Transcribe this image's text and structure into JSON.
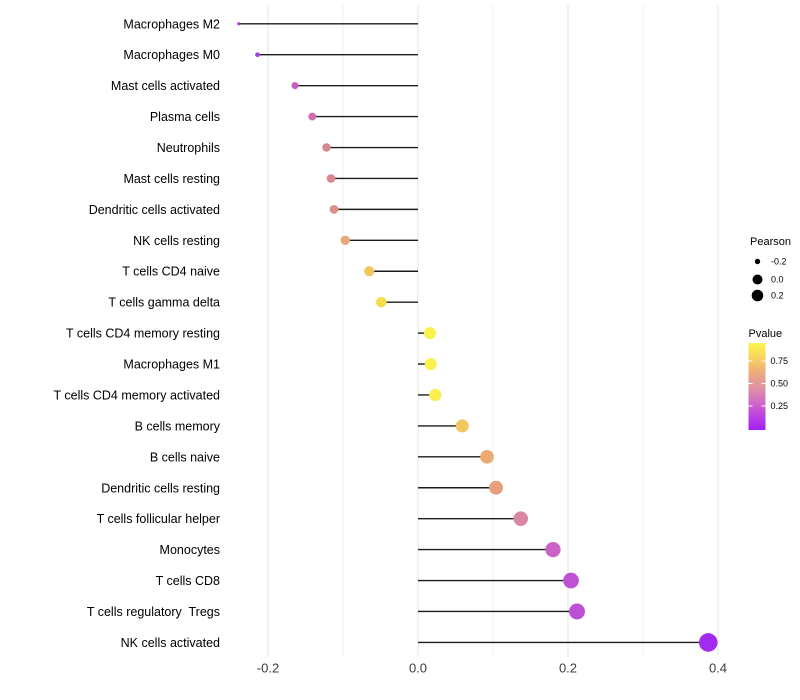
{
  "chart_data": {
    "type": "lollipop",
    "orientation": "horizontal",
    "title": "",
    "xlabel": "",
    "ylabel": "",
    "x_axis": {
      "tick_labels": [
        "-0.2",
        "0.0",
        "0.2",
        "0.4"
      ],
      "tick_values": [
        -0.2,
        0.0,
        0.2,
        0.4
      ],
      "minor_gridline_values": [
        -0.1,
        0.1,
        0.3
      ],
      "range": [
        -0.253,
        0.417
      ]
    },
    "encoding": {
      "x": "Pearson correlation",
      "point_size": "Pearson",
      "point_color": "Pvalue"
    },
    "points": [
      {
        "label": "Macrophages M2",
        "pearson": -0.239,
        "pvalue_est": 0.02,
        "color": "#A233E0"
      },
      {
        "label": "Macrophages M0",
        "pearson": -0.214,
        "pvalue_est": 0.06,
        "color": "#AB3FD9"
      },
      {
        "label": "Mast cells activated",
        "pearson": -0.164,
        "pvalue_est": 0.21,
        "color": "#C75DC0"
      },
      {
        "label": "Plasma cells",
        "pearson": -0.141,
        "pvalue_est": 0.28,
        "color": "#CE6CB4"
      },
      {
        "label": "Neutrophils",
        "pearson": -0.122,
        "pvalue_est": 0.38,
        "color": "#D8868F"
      },
      {
        "label": "Mast cells resting",
        "pearson": -0.116,
        "pvalue_est": 0.39,
        "color": "#D9888F"
      },
      {
        "label": "Dendritic cells activated",
        "pearson": -0.112,
        "pvalue_est": 0.45,
        "color": "#DE9086"
      },
      {
        "label": "NK cells resting",
        "pearson": -0.097,
        "pvalue_est": 0.55,
        "color": "#E8A67B"
      },
      {
        "label": "T cells CD4 naive",
        "pearson": -0.065,
        "pvalue_est": 0.7,
        "color": "#F2C55F"
      },
      {
        "label": "T cells gamma delta",
        "pearson": -0.049,
        "pvalue_est": 0.78,
        "color": "#F6DE4B"
      },
      {
        "label": "T cells CD4 memory resting",
        "pearson": 0.016,
        "pvalue_est": 0.9,
        "color": "#FBF24D"
      },
      {
        "label": "Macrophages M1",
        "pearson": 0.017,
        "pvalue_est": 0.9,
        "color": "#FBF24D"
      },
      {
        "label": "T cells CD4 memory activated",
        "pearson": 0.023,
        "pvalue_est": 0.88,
        "color": "#FAEF4E"
      },
      {
        "label": "B cells memory",
        "pearson": 0.059,
        "pvalue_est": 0.71,
        "color": "#F3C75F"
      },
      {
        "label": "B cells naive",
        "pearson": 0.092,
        "pvalue_est": 0.57,
        "color": "#ECA973"
      },
      {
        "label": "Dendritic cells resting",
        "pearson": 0.104,
        "pvalue_est": 0.53,
        "color": "#E79F7D"
      },
      {
        "label": "T cells follicular helper",
        "pearson": 0.137,
        "pvalue_est": 0.4,
        "color": "#DA87A1"
      },
      {
        "label": "Monocytes",
        "pearson": 0.18,
        "pvalue_est": 0.22,
        "color": "#CB63C7"
      },
      {
        "label": "T cells CD8",
        "pearson": 0.204,
        "pvalue_est": 0.16,
        "color": "#BE52D3"
      },
      {
        "label": "T cells regulatory  Tregs",
        "pearson": 0.212,
        "pvalue_est": 0.15,
        "color": "#BC4FD5"
      },
      {
        "label": "NK cells activated",
        "pearson": 0.387,
        "pvalue_est": 0.03,
        "color": "#A22BEF"
      }
    ],
    "legend": {
      "size": {
        "title": "Pearson",
        "items": [
          "-0.2",
          "0.0",
          "0.2"
        ]
      },
      "color": {
        "title": "Pvalue",
        "ticks": [
          "0.75",
          "0.50",
          "0.25"
        ],
        "gradient_top_to_bottom": [
          "#FCF64C",
          "#F6D45F",
          "#EEAC7B",
          "#E294A0",
          "#D26FC2",
          "#BC43E0",
          "#A21EF5"
        ]
      }
    },
    "style": {
      "stem_color": "#1c1c1c",
      "grid_major_color": "#e4e4e4",
      "grid_minor_color": "#efefef",
      "axis_text_color": "#3c3c3c",
      "label_text_color": "#000000",
      "legend_dot_color": "#000000",
      "background": "#ffffff"
    }
  }
}
